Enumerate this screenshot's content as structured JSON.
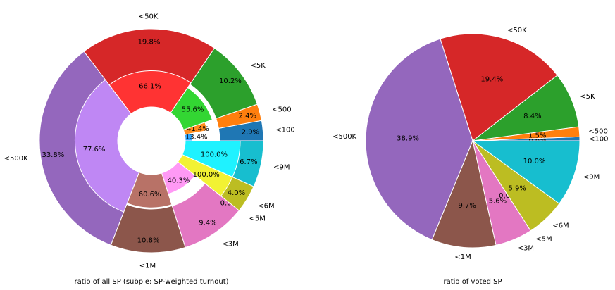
{
  "chart_data": [
    {
      "type": "pie",
      "variant": "donut-with-subpie",
      "xlabel": "ratio of all SP (subpie: SP-weighted turnout)",
      "categories": [
        "<100",
        "<500",
        "<5K",
        "<50K",
        "<500K",
        "<1M",
        "<3M",
        "<5M",
        "<6M",
        "<9M"
      ],
      "values": [
        2.9,
        2.4,
        10.2,
        19.8,
        33.8,
        10.8,
        9.4,
        0.0,
        4.0,
        6.7
      ],
      "value_labels": [
        "2.9%",
        "2.4%",
        "10.2%",
        "19.8%",
        "33.8%",
        "10.8%",
        "9.4%",
        "0.0%",
        "4.0%",
        "6.7%"
      ],
      "colors": [
        "#1f77b4",
        "#ff7f0e",
        "#2ca02c",
        "#d62728",
        "#9467bd",
        "#8c564b",
        "#e377c2",
        "#7f7f7f",
        "#bcbd22",
        "#17becf"
      ],
      "subpie": {
        "name": "SP-weighted turnout",
        "values": [
          13.4,
          41.4,
          55.6,
          66.1,
          77.6,
          60.6,
          40.3,
          0.0,
          100.0,
          100.0
        ],
        "value_labels": [
          "13.4%",
          "41.4%",
          "55.6%",
          "66.1%",
          "77.6%",
          "60.6%",
          "40.3%",
          "",
          "100.0%",
          "100.0%"
        ],
        "colors": [
          "#33a9ff",
          "#ff8e1f",
          "#33d633",
          "#ff3333",
          "#bf87f4",
          "#b87267",
          "#ff99f5",
          "#a6a6a6",
          "#f2f233",
          "#1ff2ff"
        ]
      }
    },
    {
      "type": "pie",
      "xlabel": "ratio of voted SP",
      "categories": [
        "<100",
        "<500",
        "<5K",
        "<50K",
        "<500K",
        "<1M",
        "<3M",
        "<5M",
        "<6M",
        "<9M"
      ],
      "values": [
        0.6,
        1.5,
        8.4,
        19.4,
        38.9,
        9.7,
        5.6,
        0.0,
        5.9,
        10.0
      ],
      "value_labels": [
        "0.6%",
        "1.5%",
        "8.4%",
        "19.4%",
        "38.9%",
        "9.7%",
        "5.6%",
        "0.0%",
        "5.9%",
        "10.0%"
      ],
      "colors": [
        "#1f77b4",
        "#ff7f0e",
        "#2ca02c",
        "#d62728",
        "#9467bd",
        "#8c564b",
        "#e377c2",
        "#7f7f7f",
        "#bcbd22",
        "#17becf"
      ]
    }
  ]
}
